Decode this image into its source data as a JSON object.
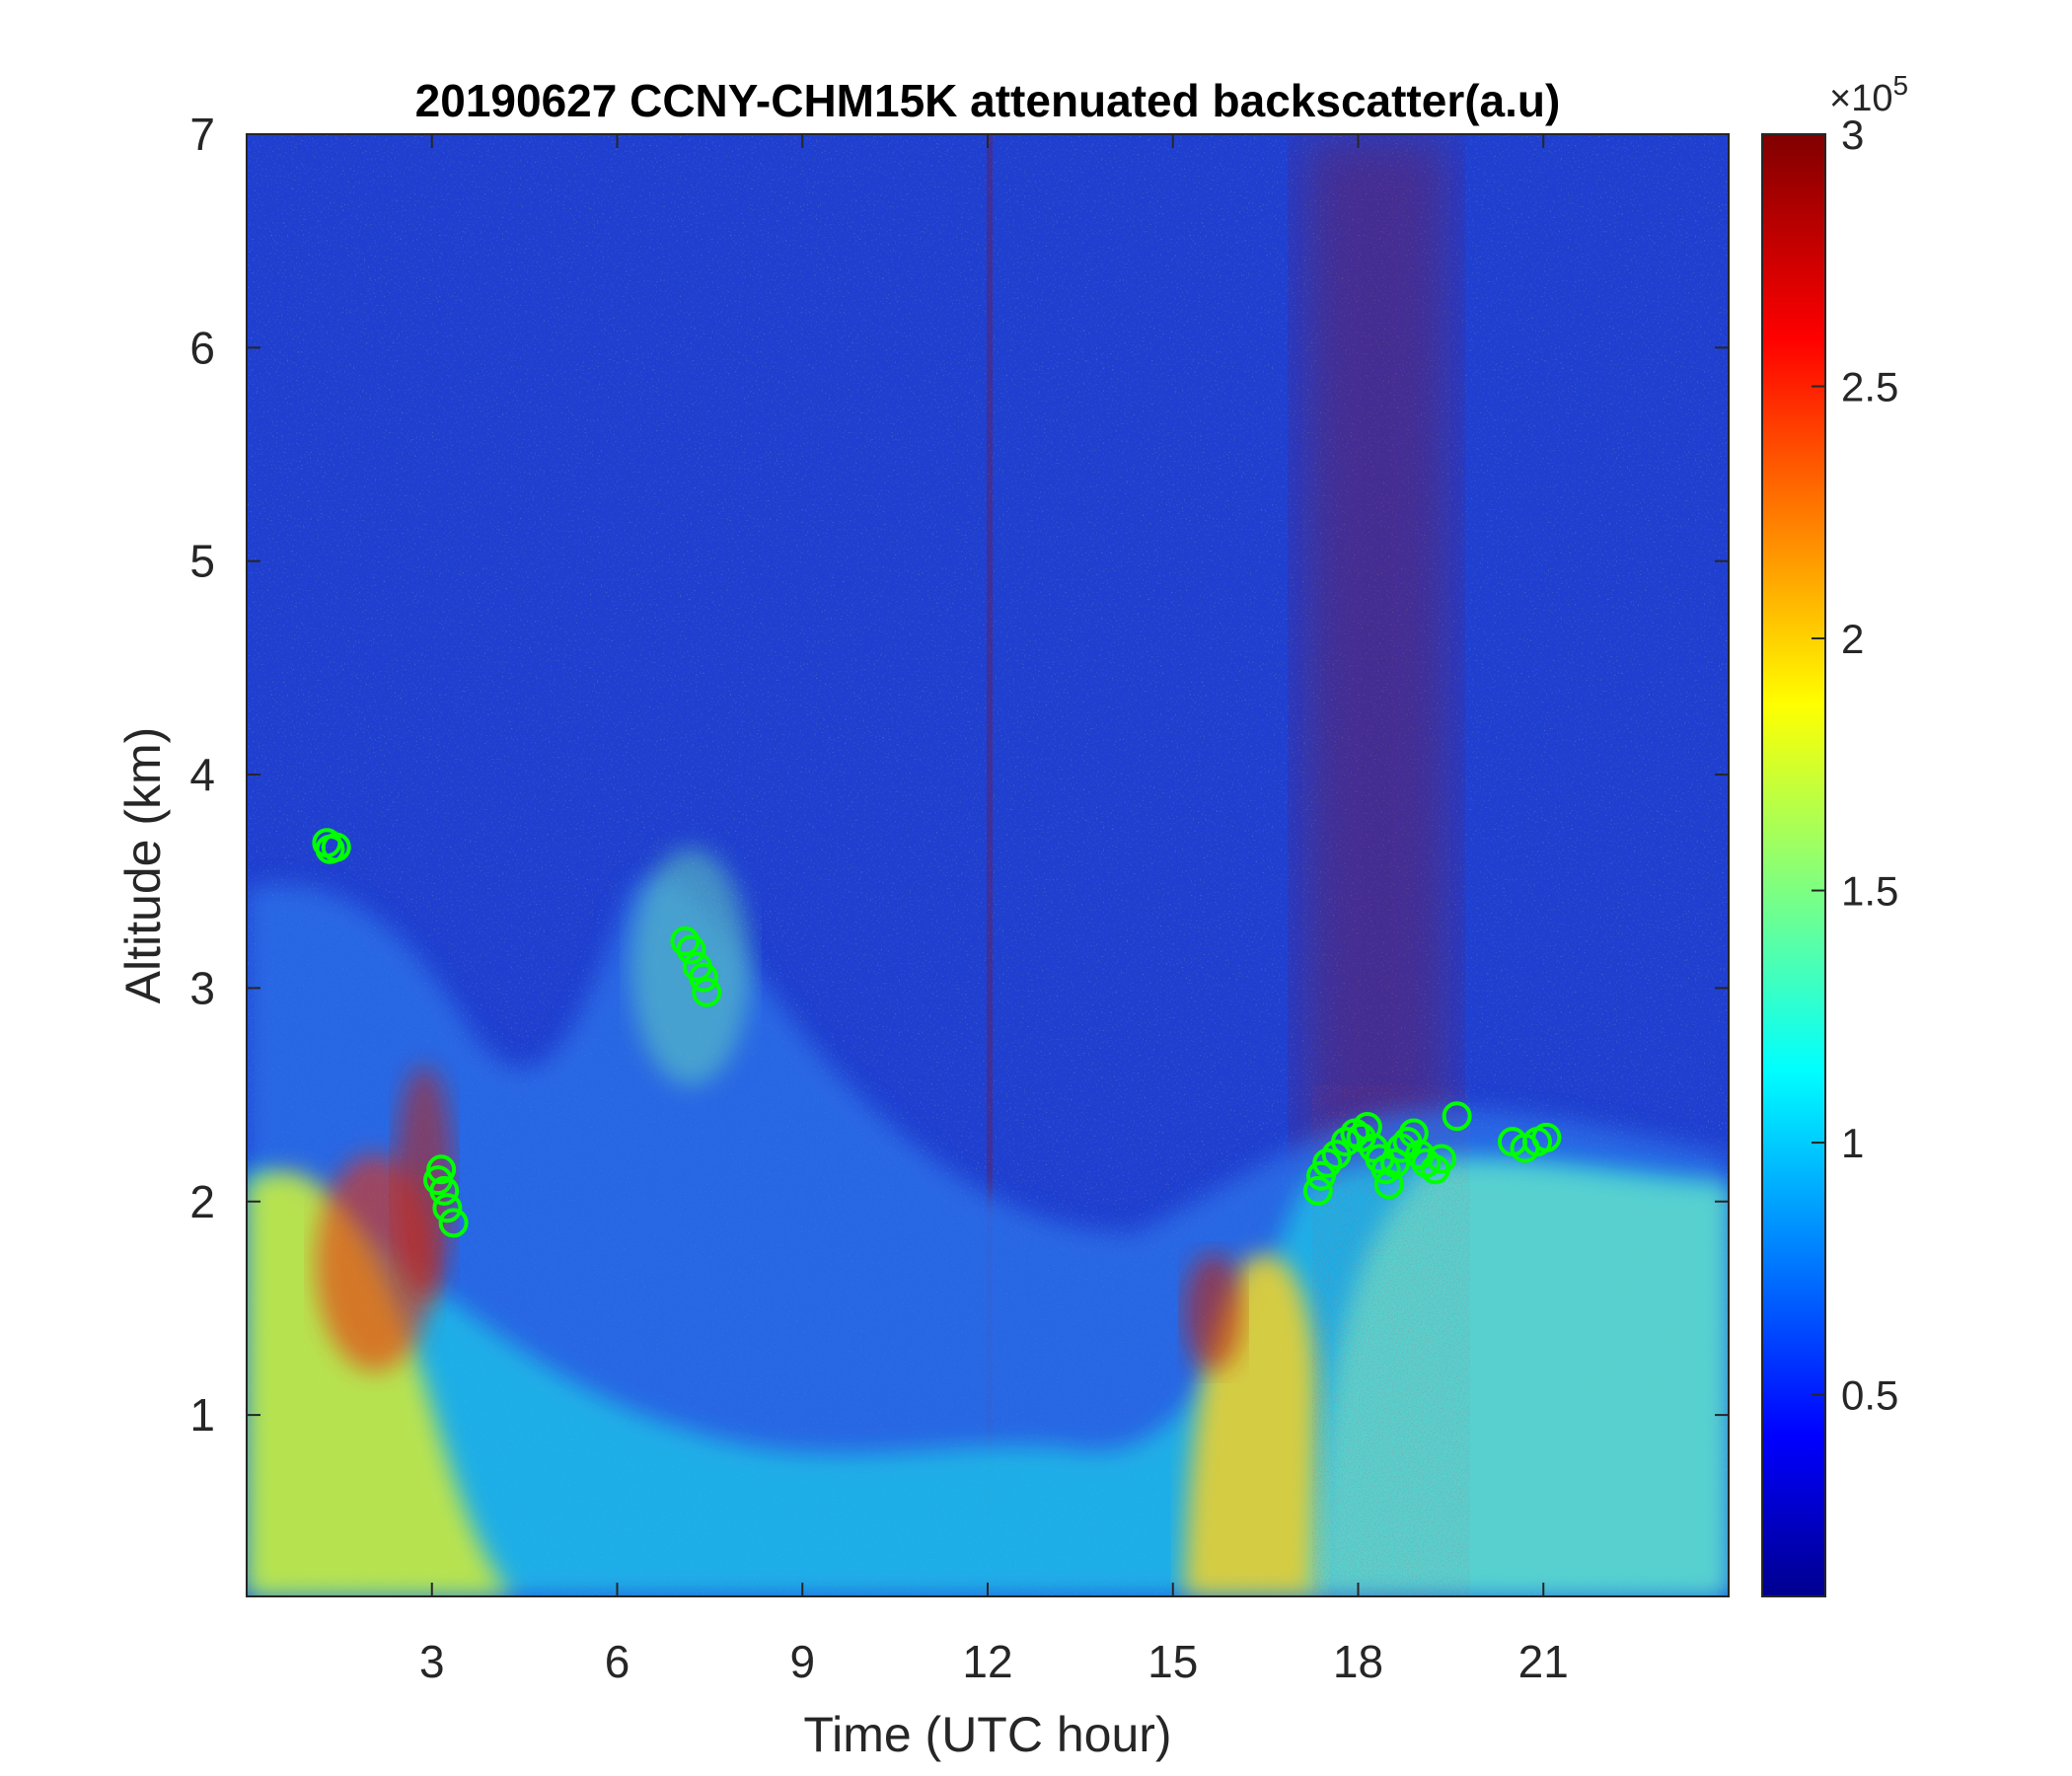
{
  "chart_data": {
    "type": "heatmap",
    "title": "20190627 CCNY-CHM15K attenuated backscatter(a.u)",
    "xlabel": "Time (UTC hour)",
    "ylabel": "Altitude (km)",
    "xlim": [
      0,
      24
    ],
    "ylim": [
      0.15,
      7
    ],
    "xticks": [
      3,
      6,
      9,
      12,
      15,
      18,
      21
    ],
    "yticks": [
      1,
      2,
      3,
      4,
      5,
      6,
      7
    ],
    "colorbar": {
      "colormap": "jet",
      "clim": [
        0.1,
        3
      ],
      "ticks": [
        0.5,
        1,
        1.5,
        2,
        2.5,
        3
      ],
      "exponent_label": "×10",
      "exponent_power": "5"
    },
    "marker_series": {
      "marker": "circle",
      "color": "#00ff00",
      "points": [
        {
          "x": 1.3,
          "y": 3.68
        },
        {
          "x": 1.35,
          "y": 3.65
        },
        {
          "x": 1.45,
          "y": 3.66
        },
        {
          "x": 3.15,
          "y": 2.15
        },
        {
          "x": 3.2,
          "y": 2.05
        },
        {
          "x": 3.25,
          "y": 1.97
        },
        {
          "x": 3.35,
          "y": 1.9
        },
        {
          "x": 3.1,
          "y": 2.1
        },
        {
          "x": 7.1,
          "y": 3.22
        },
        {
          "x": 7.2,
          "y": 3.18
        },
        {
          "x": 7.3,
          "y": 3.1
        },
        {
          "x": 7.4,
          "y": 3.05
        },
        {
          "x": 7.45,
          "y": 2.98
        },
        {
          "x": 17.35,
          "y": 2.05
        },
        {
          "x": 17.4,
          "y": 2.12
        },
        {
          "x": 17.5,
          "y": 2.18
        },
        {
          "x": 17.65,
          "y": 2.22
        },
        {
          "x": 17.8,
          "y": 2.28
        },
        {
          "x": 17.95,
          "y": 2.32
        },
        {
          "x": 18.05,
          "y": 2.3
        },
        {
          "x": 18.15,
          "y": 2.35
        },
        {
          "x": 18.25,
          "y": 2.25
        },
        {
          "x": 18.35,
          "y": 2.2
        },
        {
          "x": 18.45,
          "y": 2.15
        },
        {
          "x": 18.5,
          "y": 2.08
        },
        {
          "x": 18.6,
          "y": 2.18
        },
        {
          "x": 18.7,
          "y": 2.25
        },
        {
          "x": 18.8,
          "y": 2.28
        },
        {
          "x": 18.9,
          "y": 2.32
        },
        {
          "x": 19.0,
          "y": 2.22
        },
        {
          "x": 19.1,
          "y": 2.18
        },
        {
          "x": 19.25,
          "y": 2.15
        },
        {
          "x": 19.35,
          "y": 2.2
        },
        {
          "x": 19.6,
          "y": 2.4
        },
        {
          "x": 20.5,
          "y": 2.28
        },
        {
          "x": 20.7,
          "y": 2.25
        },
        {
          "x": 20.9,
          "y": 2.28
        },
        {
          "x": 21.05,
          "y": 2.3
        }
      ]
    }
  }
}
